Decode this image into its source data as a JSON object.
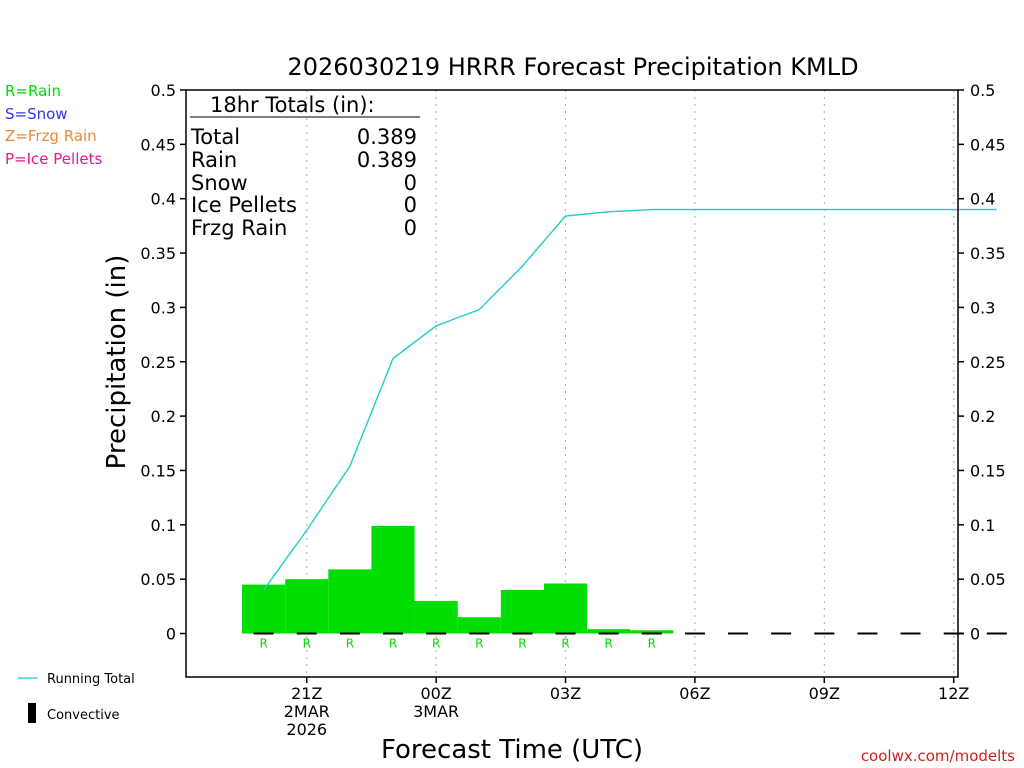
{
  "chart_data": {
    "type": "bar",
    "title": "2026030219 HRRR Forecast Precipitation KMLD",
    "xlabel": "Forecast Time (UTC)",
    "ylabel": "Precipitation (in)",
    "ylim": [
      -0.04,
      0.5
    ],
    "yticks": [
      0,
      0.05,
      0.1,
      0.15,
      0.2,
      0.25,
      0.3,
      0.35,
      0.4,
      0.45,
      0.5
    ],
    "ytick_labels": [
      "0",
      "0.05",
      "0.1",
      "0.15",
      "0.2",
      "0.25",
      "0.3",
      "0.35",
      "0.4",
      "0.45",
      "0.5"
    ],
    "xlim_hours": [
      -2.8,
      15.1
    ],
    "xticks": [
      {
        "hour": 0,
        "lines": [
          "21Z",
          "2MAR",
          "2026"
        ]
      },
      {
        "hour": 3,
        "lines": [
          "00Z",
          "3MAR"
        ]
      },
      {
        "hour": 6,
        "lines": [
          "03Z"
        ]
      },
      {
        "hour": 9,
        "lines": [
          "06Z"
        ]
      },
      {
        "hour": 12,
        "lines": [
          "09Z"
        ]
      },
      {
        "hour": 15,
        "lines": [
          "12Z"
        ]
      }
    ],
    "hourly_bars": [
      {
        "start": -1.5,
        "end": -0.5,
        "value": 0.045,
        "type": "R"
      },
      {
        "start": -0.5,
        "end": 0.5,
        "value": 0.05,
        "type": "R"
      },
      {
        "start": 0.5,
        "end": 1.5,
        "value": 0.059,
        "type": "R"
      },
      {
        "start": 1.5,
        "end": 2.5,
        "value": 0.099,
        "type": "R"
      },
      {
        "start": 2.5,
        "end": 3.5,
        "value": 0.03,
        "type": "R"
      },
      {
        "start": 3.5,
        "end": 4.5,
        "value": 0.015,
        "type": "R"
      },
      {
        "start": 4.5,
        "end": 5.5,
        "value": 0.04,
        "type": "R"
      },
      {
        "start": 5.5,
        "end": 6.5,
        "value": 0.046,
        "type": "R"
      },
      {
        "start": 6.5,
        "end": 7.5,
        "value": 0.004,
        "type": "R"
      },
      {
        "start": 7.5,
        "end": 8.5,
        "value": 0.003,
        "type": "R"
      }
    ],
    "running_total": {
      "hours": [
        -1,
        0,
        1,
        2,
        3,
        4,
        5,
        6,
        7,
        8,
        9,
        10,
        11,
        12,
        13,
        14,
        15,
        16
      ],
      "values": [
        0.04,
        0.095,
        0.154,
        0.253,
        0.283,
        0.298,
        0.338,
        0.384,
        0.388,
        0.39,
        0.39,
        0.39,
        0.39,
        0.39,
        0.39,
        0.39,
        0.39,
        0.39
      ]
    },
    "type_marker_hours": [
      -1,
      0,
      1,
      2,
      3,
      4,
      5,
      6,
      7,
      8
    ],
    "zero_segment_hours": [
      -1,
      0,
      1,
      2,
      3,
      4,
      5,
      6,
      7,
      8,
      9,
      10,
      11,
      12,
      13,
      14,
      15,
      16
    ],
    "colors": {
      "rain": "#00dd00",
      "snow": "#3333ee",
      "frzg_rain": "#ee8833",
      "ice_pellets": "#ee1493",
      "running_total": "#22cccc",
      "grid": "#aaaaaa",
      "source": "#cc2222"
    }
  },
  "legend": {
    "rain": "R=Rain",
    "snow": "S=Snow",
    "frzg_rain": "Z=Frzg Rain",
    "ice_pellets": "P=Ice Pellets",
    "running_total": "Running Total",
    "convective": "Convective"
  },
  "totals": {
    "header": "18hr Totals (in):",
    "rows": [
      {
        "label": "Total",
        "value": "0.389"
      },
      {
        "label": "Rain",
        "value": "0.389"
      },
      {
        "label": "Snow",
        "value": "0"
      },
      {
        "label": "Ice Pellets",
        "value": "0"
      },
      {
        "label": "Frzg Rain",
        "value": "0"
      }
    ]
  },
  "source": "coolwx.com/modelts"
}
